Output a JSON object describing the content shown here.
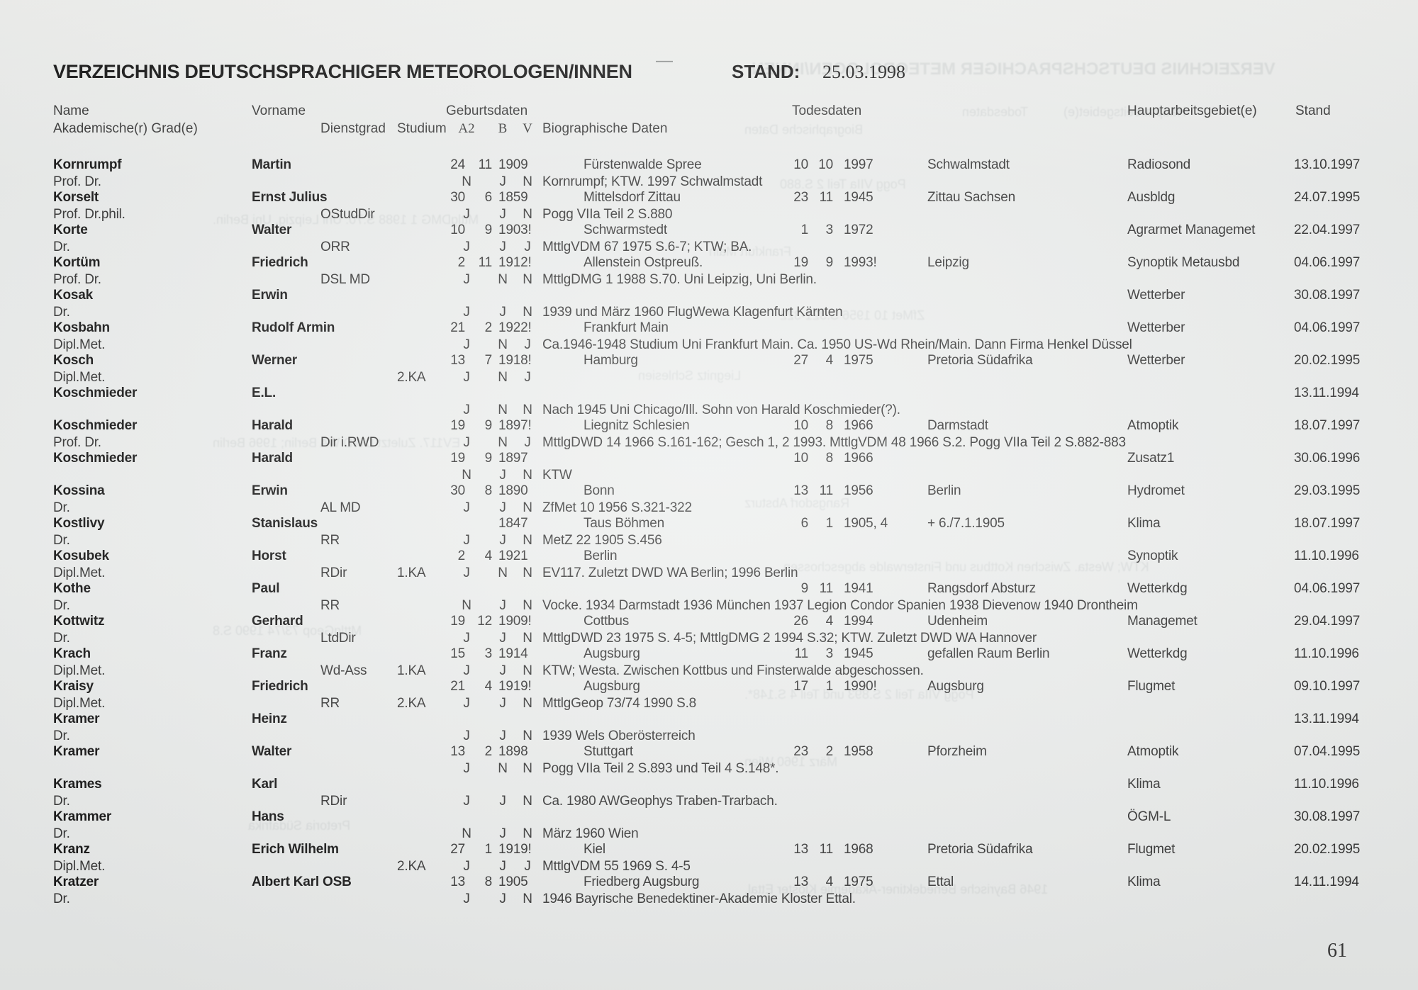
{
  "page": {
    "title": "VERZEICHNIS DEUTSCHSPRACHIGER METEOROLOGEN/INNEN",
    "stand_label": "STAND:",
    "stand_date": "25.03.1998",
    "dash": "—",
    "page_number": "61"
  },
  "columns": {
    "name": "Name",
    "grade": "Akademische(r) Grad(e)",
    "vorname": "Vorname",
    "dienstgrad": "Dienstgrad",
    "geburtsdaten": "Geburtsdaten",
    "studium": "Studium",
    "a2": "A2",
    "b": "B",
    "v": "V",
    "bio": "Biographische Daten",
    "todesdaten": "Todesdaten",
    "hauptarbeitsgebiet": "Hauptarbeitsgebiet(e)",
    "stand": "Stand"
  },
  "entries": [
    {
      "name": "Kornrumpf",
      "grade": "Prof. Dr.",
      "vorname": "Martin",
      "dienst": "",
      "ka": "",
      "bd": "24",
      "bm": "11",
      "by": "1909",
      "bplace": "Fürstenwalde Spree",
      "dd": "10",
      "dm": "10",
      "dy": "1997",
      "dplace": "Schwalmstadt",
      "haupt": "Radiosond",
      "stand": "13.10.1997",
      "a2": "N",
      "b": "J",
      "v": "N",
      "bio": "Kornrumpf; KTW. 1997 Schwalmstadt"
    },
    {
      "name": "Korselt",
      "grade": "Prof. Dr.phil.",
      "vorname": "Ernst Julius",
      "dienst": "OStudDir",
      "ka": "",
      "bd": "30",
      "bm": "6",
      "by": "1859",
      "bplace": "Mittelsdorf Zittau",
      "dd": "23",
      "dm": "11",
      "dy": "1945",
      "dplace": "Zittau Sachsen",
      "haupt": "Ausbldg",
      "stand": "24.07.1995",
      "a2": "J",
      "b": "J",
      "v": "N",
      "bio": "Pogg VIIa Teil 2 S.880"
    },
    {
      "name": "Korte",
      "grade": "Dr.",
      "vorname": "Walter",
      "dienst": "ORR",
      "ka": "",
      "bd": "10",
      "bm": "9",
      "by": "1903!",
      "bplace": "Schwarmstedt",
      "dd": "1",
      "dm": "3",
      "dy": "1972",
      "dplace": "",
      "haupt": "Agrarmet Managemet",
      "stand": "22.04.1997",
      "a2": "J",
      "b": "J",
      "v": "J",
      "bio": "MttlgVDM 67 1975 S.6-7; KTW; BA."
    },
    {
      "name": "Kortüm",
      "grade": "Prof. Dr.",
      "vorname": "Friedrich",
      "dienst": "DSL MD",
      "ka": "",
      "bd": "2",
      "bm": "11",
      "by": "1912!",
      "bplace": "Allenstein Ostpreuß.",
      "dd": "19",
      "dm": "9",
      "dy": "1993!",
      "dplace": "Leipzig",
      "haupt": "Synoptik Metausbd",
      "stand": "04.06.1997",
      "a2": "J",
      "b": "N",
      "v": "N",
      "bio": "MttlgDMG 1 1988 S.70. Uni Leipzig, Uni Berlin."
    },
    {
      "name": "Kosak",
      "grade": "Dr.",
      "vorname": "Erwin",
      "dienst": "",
      "ka": "",
      "bd": "",
      "bm": "",
      "by": "",
      "bplace": "",
      "dd": "",
      "dm": "",
      "dy": "",
      "dplace": "",
      "haupt": "Wetterber",
      "stand": "30.08.1997",
      "a2": "J",
      "b": "J",
      "v": "N",
      "bio": "1939 und März 1960 FlugWewa Klagenfurt Kärnten"
    },
    {
      "name": "Kosbahn",
      "grade": "Dipl.Met.",
      "vorname": "Rudolf Armin",
      "dienst": "",
      "ka": "",
      "bd": "21",
      "bm": "2",
      "by": "1922!",
      "bplace": "Frankfurt Main",
      "dd": "",
      "dm": "",
      "dy": "",
      "dplace": "",
      "haupt": "Wetterber",
      "stand": "04.06.1997",
      "a2": "J",
      "b": "N",
      "v": "J",
      "bio": "Ca.1946-1948 Studium Uni Frankfurt Main. Ca. 1950 US-Wd Rhein/Main. Dann Firma Henkel Düssel"
    },
    {
      "name": "Kosch",
      "grade": "Dipl.Met.",
      "vorname": "Werner",
      "dienst": "",
      "ka": "2.KA",
      "bd": "13",
      "bm": "7",
      "by": "1918!",
      "bplace": "Hamburg",
      "dd": "27",
      "dm": "4",
      "dy": "1975",
      "dplace": "Pretoria Südafrika",
      "haupt": "Wetterber",
      "stand": "20.02.1995",
      "a2": "J",
      "b": "N",
      "v": "J",
      "bio": ""
    },
    {
      "name": "Koschmieder",
      "grade": "",
      "vorname": "E.L.",
      "dienst": "",
      "ka": "",
      "bd": "",
      "bm": "",
      "by": "",
      "bplace": "",
      "dd": "",
      "dm": "",
      "dy": "",
      "dplace": "",
      "haupt": "",
      "stand": "13.11.1994",
      "a2": "J",
      "b": "N",
      "v": "N",
      "bio": "Nach 1945 Uni Chicago/Ill. Sohn von Harald Koschmieder(?)."
    },
    {
      "name": "Koschmieder",
      "grade": "Prof. Dr.",
      "vorname": "Harald",
      "dienst": "Dir i.RWD",
      "ka": "",
      "bd": "19",
      "bm": "9",
      "by": "1897!",
      "bplace": "Liegnitz Schlesien",
      "dd": "10",
      "dm": "8",
      "dy": "1966",
      "dplace": "Darmstadt",
      "haupt": "Atmoptik",
      "stand": "18.07.1997",
      "a2": "J",
      "b": "N",
      "v": "J",
      "bio": "MttlgDWD 14 1966 S.161-162; Gesch 1, 2 1993. MttlgVDM 48 1966 S.2. Pogg VIIa Teil 2 S.882-883"
    },
    {
      "name": "Koschmieder",
      "grade": "",
      "vorname": "Harald",
      "dienst": "",
      "ka": "",
      "bd": "19",
      "bm": "9",
      "by": "1897",
      "bplace": "",
      "dd": "10",
      "dm": "8",
      "dy": "1966",
      "dplace": "",
      "haupt": "Zusatz1",
      "stand": "30.06.1996",
      "a2": "N",
      "b": "J",
      "v": "N",
      "bio": "KTW"
    },
    {
      "name": "Kossina",
      "grade": "Dr.",
      "vorname": "Erwin",
      "dienst": "AL MD",
      "ka": "",
      "bd": "30",
      "bm": "8",
      "by": "1890",
      "bplace": "Bonn",
      "dd": "13",
      "dm": "11",
      "dy": "1956",
      "dplace": "Berlin",
      "haupt": "Hydromet",
      "stand": "29.03.1995",
      "a2": "J",
      "b": "J",
      "v": "N",
      "bio": "ZfMet 10 1956 S.321-322"
    },
    {
      "name": "Kostlivy",
      "grade": "Dr.",
      "vorname": "Stanislaus",
      "dienst": "RR",
      "ka": "",
      "bd": "",
      "bm": "",
      "by": "1847",
      "bplace": "Taus Böhmen",
      "dd": "6",
      "dm": "1",
      "dy": "1905, 4",
      "dplace": "+ 6./7.1.1905",
      "haupt": "Klima",
      "stand": "18.07.1997",
      "a2": "J",
      "b": "J",
      "v": "N",
      "bio": "MetZ 22 1905 S.456"
    },
    {
      "name": "Kosubek",
      "grade": "Dipl.Met.",
      "vorname": "Horst",
      "dienst": "RDir",
      "ka": "1.KA",
      "bd": "2",
      "bm": "4",
      "by": "1921",
      "bplace": "Berlin",
      "dd": "",
      "dm": "",
      "dy": "",
      "dplace": "",
      "haupt": "Synoptik",
      "stand": "11.10.1996",
      "a2": "J",
      "b": "N",
      "v": "N",
      "bio": "EV117. Zuletzt DWD WA Berlin; 1996 Berlin"
    },
    {
      "name": "Kothe",
      "grade": "Dr.",
      "vorname": "Paul",
      "dienst": "RR",
      "ka": "",
      "bd": "",
      "bm": "",
      "by": "",
      "bplace": "",
      "dd": "9",
      "dm": "11",
      "dy": "1941",
      "dplace": "Rangsdorf Absturz",
      "haupt": "Wetterkdg",
      "stand": "04.06.1997",
      "a2": "N",
      "b": "J",
      "v": "N",
      "bio": "Vocke. 1934 Darmstadt 1936 München 1937 Legion Condor Spanien 1938 Dievenow 1940 Drontheim"
    },
    {
      "name": "Kottwitz",
      "grade": "Dr.",
      "vorname": "Gerhard",
      "dienst": "LtdDir",
      "ka": "",
      "bd": "19",
      "bm": "12",
      "by": "1909!",
      "bplace": "Cottbus",
      "dd": "26",
      "dm": "4",
      "dy": "1994",
      "dplace": "Udenheim",
      "haupt": "Managemet",
      "stand": "29.04.1997",
      "a2": "J",
      "b": "J",
      "v": "N",
      "bio": "MttlgDWD 23 1975 S. 4-5; MttlgDMG 2 1994 S.32; KTW. Zuletzt DWD WA Hannover"
    },
    {
      "name": "Krach",
      "grade": "Dipl.Met.",
      "vorname": "Franz",
      "dienst": "Wd-Ass",
      "ka": "1.KA",
      "bd": "15",
      "bm": "3",
      "by": "1914",
      "bplace": "Augsburg",
      "dd": "11",
      "dm": "3",
      "dy": "1945",
      "dplace": "gefallen Raum Berlin",
      "haupt": "Wetterkdg",
      "stand": "11.10.1996",
      "a2": "J",
      "b": "J",
      "v": "N",
      "bio": "KTW; Westa. Zwischen Kottbus und Finsterwalde abgeschossen."
    },
    {
      "name": "Kraisy",
      "grade": "Dipl.Met.",
      "vorname": "Friedrich",
      "dienst": "RR",
      "ka": "2.KA",
      "bd": "21",
      "bm": "4",
      "by": "1919!",
      "bplace": "Augsburg",
      "dd": "17",
      "dm": "1",
      "dy": "1990!",
      "dplace": "Augsburg",
      "haupt": "Flugmet",
      "stand": "09.10.1997",
      "a2": "J",
      "b": "J",
      "v": "N",
      "bio": "MttlgGeop 73/74 1990 S.8"
    },
    {
      "name": "Kramer",
      "grade": "Dr.",
      "vorname": "Heinz",
      "dienst": "",
      "ka": "",
      "bd": "",
      "bm": "",
      "by": "",
      "bplace": "",
      "dd": "",
      "dm": "",
      "dy": "",
      "dplace": "",
      "haupt": "",
      "stand": "13.11.1994",
      "a2": "J",
      "b": "J",
      "v": "N",
      "bio": "1939 Wels Oberösterreich"
    },
    {
      "name": "Kramer",
      "grade": "",
      "vorname": "Walter",
      "dienst": "",
      "ka": "",
      "bd": "13",
      "bm": "2",
      "by": "1898",
      "bplace": "Stuttgart",
      "dd": "23",
      "dm": "2",
      "dy": "1958",
      "dplace": "Pforzheim",
      "haupt": "Atmoptik",
      "stand": "07.04.1995",
      "a2": "J",
      "b": "N",
      "v": "N",
      "bio": "Pogg VIIa Teil 2 S.893 und Teil 4 S.148*."
    },
    {
      "name": "Krames",
      "grade": "Dr.",
      "vorname": "Karl",
      "dienst": "RDir",
      "ka": "",
      "bd": "",
      "bm": "",
      "by": "",
      "bplace": "",
      "dd": "",
      "dm": "",
      "dy": "",
      "dplace": "",
      "haupt": "Klima",
      "stand": "11.10.1996",
      "a2": "J",
      "b": "J",
      "v": "N",
      "bio": "Ca. 1980 AWGeophys Traben-Trarbach."
    },
    {
      "name": "Krammer",
      "grade": "Dr.",
      "vorname": "Hans",
      "dienst": "",
      "ka": "",
      "bd": "",
      "bm": "",
      "by": "",
      "bplace": "",
      "dd": "",
      "dm": "",
      "dy": "",
      "dplace": "",
      "haupt": "ÖGM-L",
      "stand": "30.08.1997",
      "a2": "N",
      "b": "J",
      "v": "N",
      "bio": "März 1960 Wien"
    },
    {
      "name": "Kranz",
      "grade": "Dipl.Met.",
      "vorname": "Erich Wilhelm",
      "dienst": "",
      "ka": "2.KA",
      "bd": "27",
      "bm": "1",
      "by": "1919!",
      "bplace": "Kiel",
      "dd": "13",
      "dm": "11",
      "dy": "1968",
      "dplace": "Pretoria Südafrika",
      "haupt": "Flugmet",
      "stand": "20.02.1995",
      "a2": "J",
      "b": "J",
      "v": "J",
      "bio": "MttlgVDM 55 1969 S. 4-5"
    },
    {
      "name": "Kratzer",
      "grade": "Dr.",
      "vorname": "Albert Karl OSB",
      "dienst": "",
      "ka": "",
      "bd": "13",
      "bm": "8",
      "by": "1905",
      "bplace": "Friedberg Augsburg",
      "dd": "13",
      "dm": "4",
      "dy": "1975",
      "dplace": "Ettal",
      "haupt": "Klima",
      "stand": "14.11.1994",
      "a2": "J",
      "b": "J",
      "v": "N",
      "bio": "1946 Bayrische Benedektiner-Akademie Kloster Ettal."
    }
  ]
}
